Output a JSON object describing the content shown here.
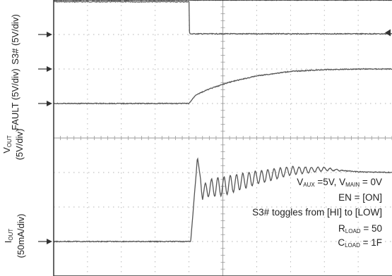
{
  "chart_data": {
    "type": "line",
    "title": "",
    "grid": true,
    "xaxis": {
      "divisions": 10,
      "labels": "none"
    },
    "yaxis": {
      "divisions": 8,
      "labels": "none"
    },
    "channels": [
      {
        "name": "S3#",
        "label_lines": [
          "S3#",
          "(5V/div)"
        ],
        "scale": "5V/div",
        "reference_div_from_top": 1.0,
        "description": "steps from HI to LOW at ~4 div",
        "x": [
          0,
          4.0,
          4.0,
          4.02,
          10
        ],
        "y_div": [
          0.95,
          0.95,
          0.2,
          0.02,
          0.02
        ]
      },
      {
        "name": "FAULT",
        "label_lines": [
          "FAULT",
          "(5V/div)"
        ],
        "scale": "5V/div",
        "reference_div_from_top": 2.0,
        "x": [
          0,
          10
        ],
        "y_div": [
          2.0,
          2.0
        ]
      },
      {
        "name": "VOUT",
        "label_lines": [
          "V|OUT",
          "(5V/div)"
        ],
        "scale": "5V/div",
        "reference_div_from_top": 3.0,
        "x": [
          0,
          4.0,
          4.2,
          4.6,
          5.2,
          6.0,
          7.0,
          8.0,
          9.0,
          10
        ],
        "y_div": [
          0,
          0,
          0.25,
          0.42,
          0.62,
          0.8,
          0.93,
          0.98,
          1.0,
          1.0
        ]
      },
      {
        "name": "IOUT",
        "label_lines": [
          "I|OUT",
          "(50mA/div)"
        ],
        "scale": "50mA/div",
        "reference_div_from_top": 7.0,
        "x": [
          0,
          4.05,
          4.25,
          4.4,
          4.6,
          5.0,
          6.0,
          7.0,
          8.0,
          9.0,
          10
        ],
        "y_div": [
          0,
          0,
          2.45,
          1.4,
          1.55,
          1.6,
          1.85,
          2.05,
          2.1,
          2.02,
          2.0
        ]
      }
    ]
  },
  "conditions": [
    {
      "pre": "V",
      "sub": "AUX",
      "mid": " =5V, V",
      "sub2": "MAIN",
      "post": " = 0V"
    },
    {
      "pre": "EN = [ON]",
      "sub": "",
      "mid": "",
      "sub2": "",
      "post": ""
    },
    {
      "pre": "S3# toggles from [HI] to [LOW]",
      "sub": "",
      "mid": "",
      "sub2": "",
      "post": ""
    },
    {
      "pre": "R",
      "sub": "LOAD",
      "mid": " = 50",
      "sub2": "",
      "post": ""
    },
    {
      "pre": "C",
      "sub": "LOAD",
      "mid": " = 1F",
      "sub2": "",
      "post": ""
    }
  ],
  "colors": {
    "trace": "#555555",
    "grid": "#9a9a9a",
    "frame": "#333333",
    "arrow": "#333333"
  }
}
